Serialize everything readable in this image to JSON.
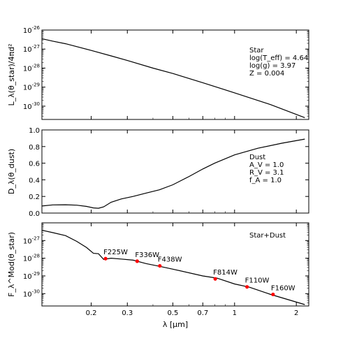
{
  "chart_data": [
    {
      "type": "line",
      "id": "star",
      "ylabel": "L_λ(θ_star)/4πd²",
      "yscale": "log",
      "ylim": [
        2e-31,
        1e-26
      ],
      "yticks": [
        {
          "v": 1e-26,
          "label": "10^-26"
        },
        {
          "v": 1e-27,
          "label": "10^-27"
        },
        {
          "v": 1e-28,
          "label": "10^-28"
        },
        {
          "v": 1e-29,
          "label": "10^-29"
        },
        {
          "v": 1e-30,
          "label": "10^-30"
        }
      ],
      "annotations": [
        "Star",
        "log(T_eff) = 4.64",
        "log(g) = 3.97",
        "Z = 0.004"
      ],
      "series": [
        {
          "x": [
            0.115,
            0.13,
            0.15,
            0.2,
            0.25,
            0.3,
            0.4,
            0.5,
            0.7,
            1.0,
            1.5,
            2.2
          ],
          "y": [
            3.5e-27,
            2.6e-27,
            1.9e-27,
            8.5e-28,
            4.4e-28,
            2.5e-28,
            1e-28,
            5.2e-29,
            1.7e-29,
            5e-30,
            1.2e-30,
            2.5e-31
          ]
        }
      ]
    },
    {
      "type": "line",
      "id": "dust",
      "ylabel": "D_λ(θ_dust)",
      "yscale": "linear",
      "ylim": [
        0,
        1.0
      ],
      "yticks": [
        {
          "v": 0.0,
          "label": "0.0"
        },
        {
          "v": 0.2,
          "label": "0.2"
        },
        {
          "v": 0.4,
          "label": "0.4"
        },
        {
          "v": 0.6,
          "label": "0.6"
        },
        {
          "v": 0.8,
          "label": "0.8"
        },
        {
          "v": 1.0,
          "label": "1.0"
        }
      ],
      "annotations": [
        "Dust",
        "A_V = 1.0",
        "R_V = 3.1",
        "f_A = 1.0"
      ],
      "series": [
        {
          "x": [
            0.115,
            0.13,
            0.15,
            0.17,
            0.19,
            0.205,
            0.217,
            0.23,
            0.25,
            0.28,
            0.32,
            0.37,
            0.43,
            0.5,
            0.6,
            0.7,
            0.8,
            1.0,
            1.3,
            1.7,
            2.2
          ],
          "y": [
            0.085,
            0.098,
            0.1,
            0.095,
            0.08,
            0.062,
            0.058,
            0.075,
            0.13,
            0.17,
            0.2,
            0.24,
            0.28,
            0.34,
            0.44,
            0.53,
            0.6,
            0.7,
            0.78,
            0.84,
            0.89
          ]
        }
      ]
    },
    {
      "type": "line",
      "id": "combined",
      "ylabel": "F_λ^Mod(θ_star)",
      "xlabel": "λ [μm]",
      "yscale": "log",
      "xscale": "log",
      "ylim": [
        2e-31,
        1e-26
      ],
      "xlim": [
        0.115,
        2.3
      ],
      "yticks": [
        {
          "v": 1e-27,
          "label": "10^-27"
        },
        {
          "v": 1e-28,
          "label": "10^-28"
        },
        {
          "v": 1e-29,
          "label": "10^-29"
        },
        {
          "v": 1e-30,
          "label": "10^-30"
        }
      ],
      "xticks": [
        {
          "v": 0.2,
          "label": "0.2"
        },
        {
          "v": 0.3,
          "label": "0.3"
        },
        {
          "v": 0.5,
          "label": "0.5"
        },
        {
          "v": 0.7,
          "label": "0.7"
        },
        {
          "v": 1.0,
          "label": "1"
        },
        {
          "v": 2.0,
          "label": "2"
        }
      ],
      "annotations": [
        "Star+Dust"
      ],
      "series": [
        {
          "x": [
            0.115,
            0.13,
            0.15,
            0.17,
            0.19,
            0.205,
            0.217,
            0.23,
            0.25,
            0.28,
            0.32,
            0.37,
            0.43,
            0.5,
            0.7,
            0.82,
            1.0,
            1.18,
            1.5,
            2.2
          ],
          "y": [
            3.8e-27,
            2.8e-27,
            1.9e-27,
            9e-28,
            4e-28,
            1.9e-28,
            1.8e-28,
            8.5e-29,
            1e-28,
            9e-29,
            7.8e-29,
            5e-29,
            3.5e-29,
            2.4e-29,
            1e-29,
            7.5e-30,
            3.5e-30,
            2.3e-30,
            9e-31,
            2.4e-31
          ]
        }
      ],
      "filters": [
        {
          "name": "F225W",
          "x": 0.235,
          "y": 9.5e-29
        },
        {
          "name": "F336W",
          "x": 0.335,
          "y": 6.8e-29
        },
        {
          "name": "F438W",
          "x": 0.432,
          "y": 3.7e-29
        },
        {
          "name": "F814W",
          "x": 0.805,
          "y": 6.8e-30
        },
        {
          "name": "F110W",
          "x": 1.15,
          "y": 2.4e-30
        },
        {
          "name": "F160W",
          "x": 1.54,
          "y": 9e-31
        }
      ]
    }
  ],
  "colors": {
    "line": "#000000",
    "marker": "#ff0000"
  }
}
